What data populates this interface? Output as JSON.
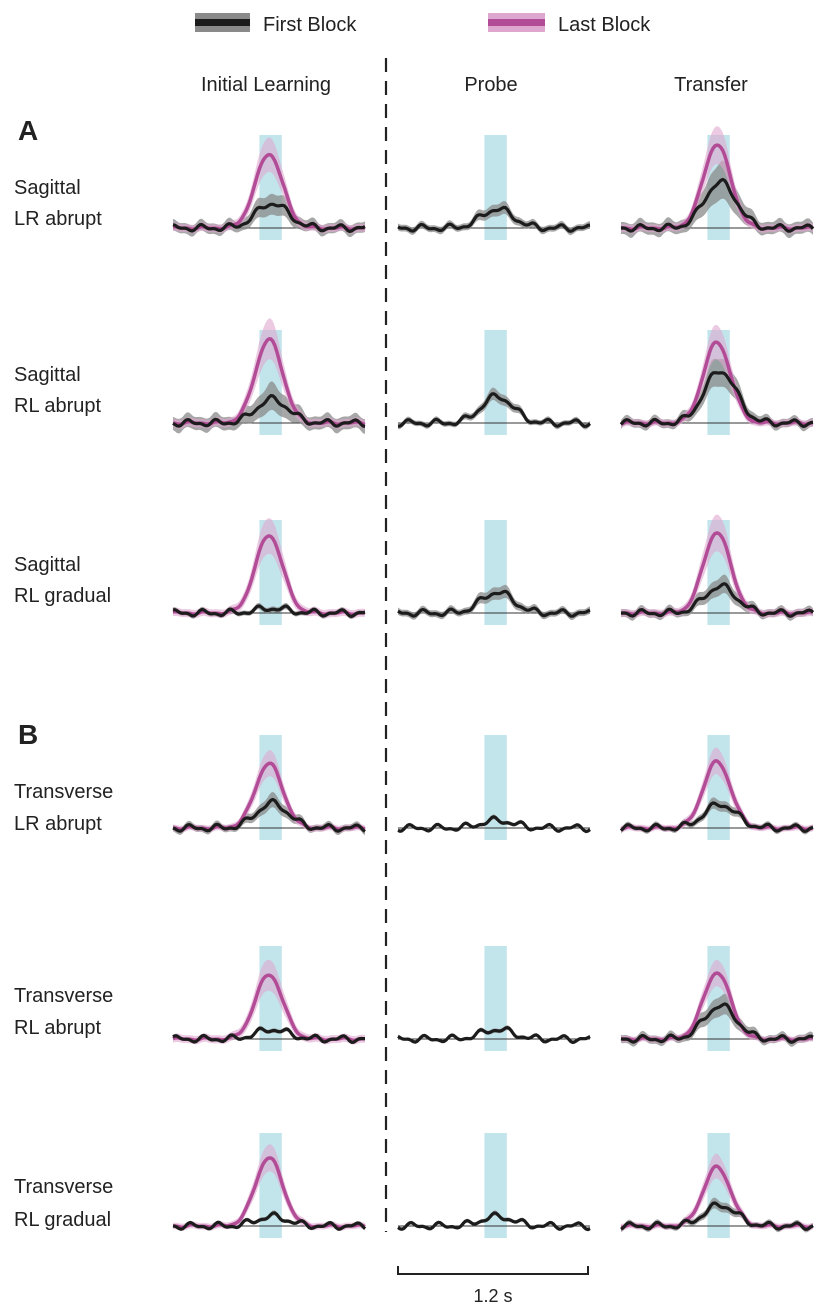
{
  "legend": [
    {
      "label": "First Block",
      "color": "#1c1c1c",
      "band_color": "#8a8a8a"
    },
    {
      "label": "Last Block",
      "color": "#b24c97",
      "band_color": "#dda7cf"
    }
  ],
  "columns": [
    "Initial Learning",
    "Probe",
    "Transfer"
  ],
  "panels": [
    {
      "letter": "A",
      "rows": [
        {
          "label_line1": "Sagittal",
          "label_line2": "LR abrupt"
        },
        {
          "label_line1": "Sagittal",
          "label_line2": "RL abrupt"
        },
        {
          "label_line1": "Sagittal",
          "label_line2": "RL gradual"
        }
      ]
    },
    {
      "letter": "B",
      "rows": [
        {
          "label_line1": "Transverse",
          "label_line2": "LR abrupt"
        },
        {
          "label_line1": "Transverse",
          "label_line2": "RL abrupt"
        },
        {
          "label_line1": "Transverse",
          "label_line2": "RL gradual"
        }
      ]
    }
  ],
  "scale_bar": {
    "label": "1.2 s",
    "seconds": 1.2
  },
  "colors": {
    "highlight": "#c2e5ec",
    "divider": "#222222",
    "baseline": "#333333"
  },
  "chart_data": {
    "type": "line",
    "x_range_s": [
      0,
      1.2
    ],
    "series_names": [
      "First Block",
      "Last Block"
    ],
    "highlight_window_s": [
      0.54,
      0.68
    ],
    "peak_time_s": 0.6,
    "cells": [
      {
        "row": "Sagittal LR abrupt",
        "column": "Initial Learning",
        "first_block_peak": 0.26,
        "first_block_sd": 0.38,
        "last_block_peak": 0.78,
        "last_block_sd": 0.3
      },
      {
        "row": "Sagittal LR abrupt",
        "column": "Probe",
        "first_block_peak": 0.2,
        "first_block_sd": 0.25
      },
      {
        "row": "Sagittal LR abrupt",
        "column": "Transfer",
        "first_block_peak": 0.48,
        "first_block_sd": 0.45,
        "last_block_peak": 0.88,
        "last_block_sd": 0.3
      },
      {
        "row": "Sagittal RL abrupt",
        "column": "Initial Learning",
        "first_block_peak": 0.25,
        "first_block_sd": 0.48,
        "last_block_peak": 0.88,
        "last_block_sd": 0.32
      },
      {
        "row": "Sagittal RL abrupt",
        "column": "Probe",
        "first_block_peak": 0.28,
        "first_block_sd": 0.2
      },
      {
        "row": "Sagittal RL abrupt",
        "column": "Transfer",
        "first_block_peak": 0.55,
        "first_block_sd": 0.32,
        "last_block_peak": 0.85,
        "last_block_sd": 0.28
      },
      {
        "row": "Sagittal RL gradual",
        "column": "Initial Learning",
        "first_block_peak": 0.05,
        "first_block_sd": 0.18,
        "last_block_peak": 0.82,
        "last_block_sd": 0.3
      },
      {
        "row": "Sagittal RL gradual",
        "column": "Probe",
        "first_block_peak": 0.22,
        "first_block_sd": 0.25
      },
      {
        "row": "Sagittal RL gradual",
        "column": "Transfer",
        "first_block_peak": 0.28,
        "first_block_sd": 0.3,
        "last_block_peak": 0.85,
        "last_block_sd": 0.3
      },
      {
        "row": "Transverse LR abrupt",
        "column": "Initial Learning",
        "first_block_peak": 0.26,
        "first_block_sd": 0.25,
        "last_block_peak": 0.68,
        "last_block_sd": 0.25
      },
      {
        "row": "Transverse LR abrupt",
        "column": "Probe",
        "first_block_peak": 0.08,
        "first_block_sd": 0.12
      },
      {
        "row": "Transverse LR abrupt",
        "column": "Transfer",
        "first_block_peak": 0.25,
        "first_block_sd": 0.2,
        "last_block_peak": 0.7,
        "last_block_sd": 0.25
      },
      {
        "row": "Transverse RL abrupt",
        "column": "Initial Learning",
        "first_block_peak": 0.1,
        "first_block_sd": 0.12,
        "last_block_peak": 0.68,
        "last_block_sd": 0.3
      },
      {
        "row": "Transverse RL abrupt",
        "column": "Probe",
        "first_block_peak": 0.1,
        "first_block_sd": 0.12
      },
      {
        "row": "Transverse RL abrupt",
        "column": "Transfer",
        "first_block_peak": 0.35,
        "first_block_sd": 0.3,
        "last_block_peak": 0.7,
        "last_block_sd": 0.25
      },
      {
        "row": "Transverse RL gradual",
        "column": "Initial Learning",
        "first_block_peak": 0.1,
        "first_block_sd": 0.12,
        "last_block_peak": 0.72,
        "last_block_sd": 0.25
      },
      {
        "row": "Transverse RL gradual",
        "column": "Probe",
        "first_block_peak": 0.1,
        "first_block_sd": 0.12
      },
      {
        "row": "Transverse RL gradual",
        "column": "Transfer",
        "first_block_peak": 0.22,
        "first_block_sd": 0.2,
        "last_block_peak": 0.62,
        "last_block_sd": 0.25
      }
    ]
  }
}
